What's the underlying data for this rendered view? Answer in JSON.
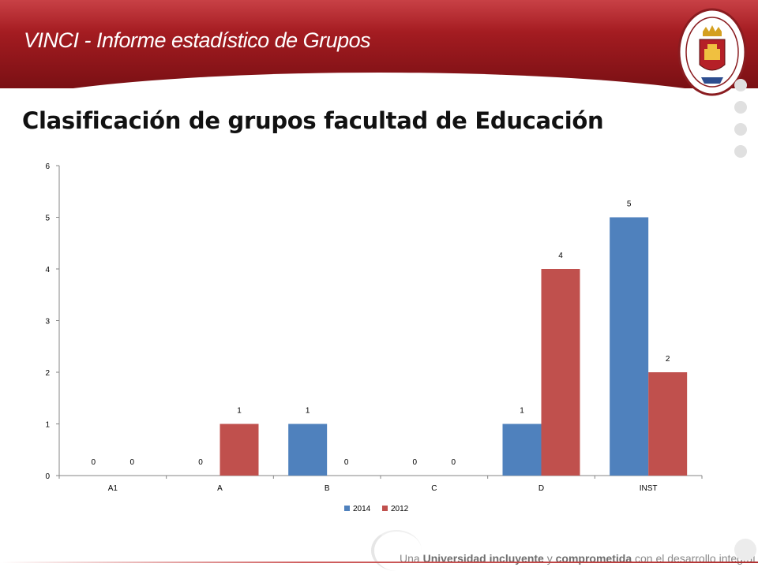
{
  "header": {
    "title": "VINCI - Informe estadístico de Grupos",
    "seal_text_top": "UNIVERSIDAD DE PAMPLONA",
    "seal_text_bottom": "COLOMBIA"
  },
  "page": {
    "title": "Clasificación de grupos facultad de Educación"
  },
  "chart_data": {
    "type": "bar",
    "categories": [
      "A1",
      "A",
      "B",
      "C",
      "D",
      "INST"
    ],
    "series": [
      {
        "name": "2014",
        "values": [
          0,
          0,
          1,
          0,
          1,
          5
        ],
        "color": "#4f81bd"
      },
      {
        "name": "2012",
        "values": [
          0,
          1,
          0,
          0,
          4,
          2
        ],
        "color": "#c0504d"
      }
    ],
    "ylim": [
      0,
      6
    ],
    "yticks": [
      0,
      1,
      2,
      3,
      4,
      5,
      6
    ],
    "title": "",
    "xlabel": "",
    "ylabel": "",
    "grid": false,
    "legend": "bottom"
  },
  "footer": {
    "text_1": "Una ",
    "text_2": "Universidad incluyente",
    "text_3": " y ",
    "text_4": "comprometida",
    "text_5": " con el desarrollo integral"
  }
}
